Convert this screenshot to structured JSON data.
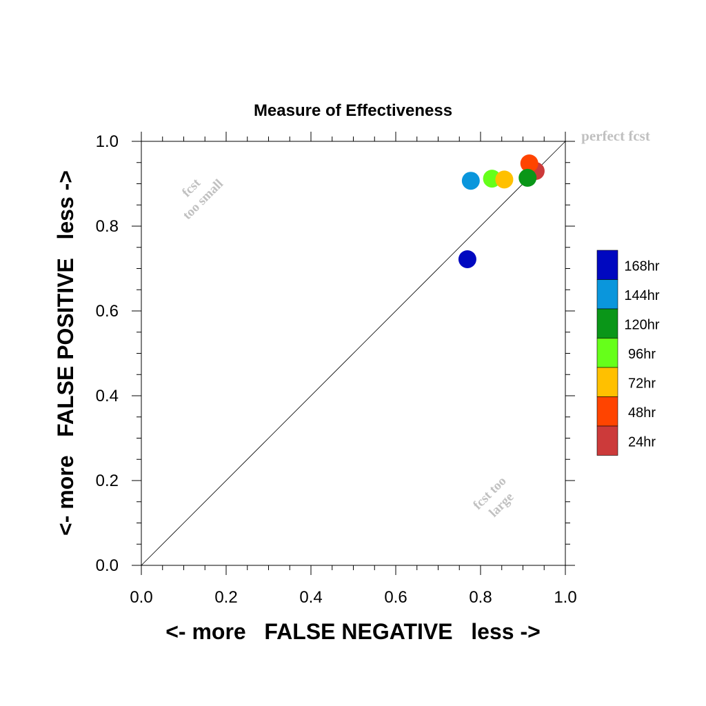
{
  "chart_data": {
    "type": "scatter",
    "title": "Measure of Effectiveness",
    "xlabel": "<- more   FALSE NEGATIVE   less ->",
    "ylabel": "<- more   FALSE POSITIVE   less ->",
    "xlim": [
      0.0,
      1.0
    ],
    "ylim": [
      0.0,
      1.0
    ],
    "xticks": [
      "0.0",
      "0.2",
      "0.4",
      "0.6",
      "0.8",
      "1.0"
    ],
    "yticks": [
      "0.0",
      "0.2",
      "0.4",
      "0.6",
      "0.8",
      "1.0"
    ],
    "grid": false,
    "diagonal_reference_line": true,
    "legend_position": "right",
    "annotations": {
      "top_right": "perfect fcst",
      "upper_left": [
        "fcst",
        "too small"
      ],
      "lower_right": [
        "fcst too",
        "large"
      ]
    },
    "series": [
      {
        "name": "24hr",
        "color": "#cc3a3a",
        "x": 0.93,
        "y": 0.93
      },
      {
        "name": "48hr",
        "color": "#ff4400",
        "x": 0.915,
        "y": 0.948
      },
      {
        "name": "72hr",
        "color": "#ffc000",
        "x": 0.856,
        "y": 0.91
      },
      {
        "name": "96hr",
        "color": "#66ff1a",
        "x": 0.827,
        "y": 0.912
      },
      {
        "name": "120hr",
        "color": "#0a9618",
        "x": 0.911,
        "y": 0.914
      },
      {
        "name": "144hr",
        "color": "#0a96dc",
        "x": 0.777,
        "y": 0.907
      },
      {
        "name": "168hr",
        "color": "#0008c0",
        "x": 0.769,
        "y": 0.722
      }
    ],
    "legend_order": [
      "168hr",
      "144hr",
      "120hr",
      "96hr",
      "72hr",
      "48hr",
      "24hr"
    ],
    "text_color_annotations": "#c0c0c0"
  }
}
